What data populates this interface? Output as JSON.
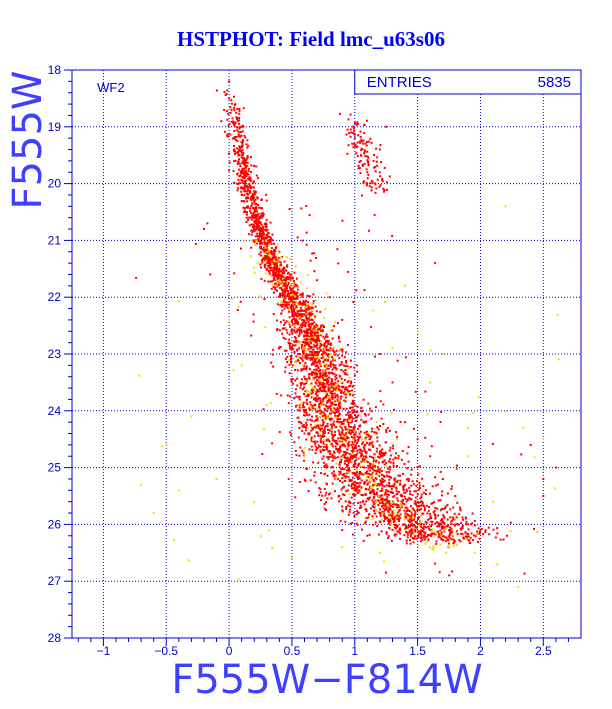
{
  "chart_data": {
    "type": "scatter",
    "title": "HSTPHOT: Field lmc_u63s06",
    "xlabel": "F555W−F814W",
    "ylabel": "F555W",
    "panel_label": "WF2",
    "stats": {
      "label": "ENTRIES",
      "value": "5835"
    },
    "xlim": [
      -1.25,
      2.8
    ],
    "ylim": [
      28,
      18
    ],
    "y_inverted": true,
    "grid": true,
    "grid_style": "dotted",
    "x_ticks": [
      -1,
      -0.5,
      0,
      0.5,
      1,
      1.5,
      2,
      2.5
    ],
    "x_tick_labels": [
      "−1",
      "−0.5",
      "0",
      "0.5",
      "1",
      "1.5",
      "2",
      "2.5"
    ],
    "y_ticks": [
      18,
      19,
      20,
      21,
      22,
      23,
      24,
      25,
      26,
      27,
      28
    ],
    "y_tick_labels": [
      "18",
      "19",
      "20",
      "21",
      "22",
      "23",
      "24",
      "25",
      "26",
      "27",
      "28"
    ],
    "series": [
      {
        "color": "#ff0000",
        "points": [
          [
            0.0,
            18.2
          ],
          [
            0.0,
            18.5
          ],
          [
            0.02,
            18.7
          ],
          [
            0.05,
            18.6
          ],
          [
            0.07,
            18.9
          ],
          [
            0.1,
            19.0
          ],
          [
            0.04,
            19.2
          ],
          [
            0.08,
            19.4
          ],
          [
            0.05,
            19.6
          ],
          [
            0.1,
            19.8
          ],
          [
            0.06,
            20.0
          ],
          [
            0.1,
            20.2
          ],
          [
            0.15,
            20.1
          ],
          [
            0.2,
            20.3
          ],
          [
            0.12,
            20.5
          ],
          [
            0.2,
            20.6
          ],
          [
            0.25,
            20.7
          ],
          [
            0.18,
            20.9
          ],
          [
            0.28,
            21.0
          ],
          [
            0.3,
            21.1
          ],
          [
            0.35,
            21.2
          ],
          [
            0.32,
            21.4
          ],
          [
            0.4,
            21.5
          ],
          [
            0.38,
            21.6
          ],
          [
            0.45,
            21.8
          ],
          [
            0.5,
            21.9
          ],
          [
            0.48,
            22.0
          ],
          [
            0.52,
            22.2
          ],
          [
            0.55,
            22.3
          ],
          [
            0.58,
            22.4
          ],
          [
            0.6,
            22.5
          ],
          [
            0.62,
            22.6
          ],
          [
            0.6,
            22.8
          ],
          [
            0.65,
            22.9
          ],
          [
            0.66,
            23.0
          ],
          [
            0.68,
            23.1
          ],
          [
            0.7,
            23.2
          ],
          [
            0.72,
            23.3
          ],
          [
            0.74,
            23.4
          ],
          [
            0.76,
            23.6
          ],
          [
            0.78,
            23.7
          ],
          [
            0.8,
            23.8
          ],
          [
            0.82,
            24.0
          ],
          [
            0.85,
            24.1
          ],
          [
            0.88,
            24.2
          ],
          [
            0.9,
            24.4
          ],
          [
            0.92,
            24.5
          ],
          [
            0.95,
            24.6
          ],
          [
            0.98,
            24.8
          ],
          [
            1.0,
            24.9
          ],
          [
            1.05,
            25.1
          ],
          [
            1.1,
            25.3
          ],
          [
            1.15,
            25.4
          ],
          [
            1.2,
            25.6
          ],
          [
            1.25,
            25.7
          ],
          [
            1.3,
            25.8
          ],
          [
            1.35,
            25.9
          ],
          [
            1.4,
            26.0
          ],
          [
            1.45,
            26.1
          ],
          [
            1.5,
            26.2
          ],
          [
            1.55,
            26.0
          ],
          [
            1.6,
            26.1
          ],
          [
            1.65,
            26.3
          ],
          [
            1.7,
            26.2
          ],
          [
            1.8,
            26.3
          ],
          [
            1.0,
            19.2
          ],
          [
            1.05,
            19.5
          ],
          [
            1.1,
            19.8
          ],
          [
            0.98,
            19.3
          ],
          [
            1.15,
            19.6
          ],
          [
            1.2,
            19.4
          ],
          [
            1.25,
            19.0
          ],
          [
            0.3,
            20.3
          ],
          [
            0.4,
            21.2
          ],
          [
            0.7,
            21.7
          ],
          [
            0.8,
            22.0
          ],
          [
            0.9,
            22.4
          ],
          [
            1.2,
            23.0
          ],
          [
            1.3,
            23.5
          ],
          [
            1.4,
            24.2
          ],
          [
            1.5,
            24.5
          ],
          [
            1.6,
            24.8
          ],
          [
            1.7,
            25.2
          ],
          [
            1.8,
            25.5
          ],
          [
            -0.2,
            20.8
          ],
          [
            -0.15,
            21.6
          ],
          [
            0.9,
            26.1
          ],
          [
            1.1,
            26.2
          ],
          [
            2.4,
            24.6
          ],
          [
            2.5,
            25.2
          ],
          [
            2.6,
            25.0
          ],
          [
            2.5,
            25.5
          ]
        ]
      },
      {
        "color": "#ffd700",
        "points": [
          [
            -0.6,
            25.8
          ],
          [
            -0.4,
            25.4
          ],
          [
            -0.5,
            24.6
          ],
          [
            -0.1,
            25.2
          ],
          [
            0.2,
            25.6
          ],
          [
            0.3,
            23.9
          ],
          [
            0.1,
            23.2
          ],
          [
            -0.3,
            24.1
          ],
          [
            0.5,
            26.6
          ],
          [
            1.3,
            22.9
          ],
          [
            1.6,
            23.5
          ],
          [
            1.9,
            24.8
          ],
          [
            2.1,
            25.6
          ],
          [
            2.2,
            20.4
          ],
          [
            1.5,
            22.6
          ],
          [
            1.7,
            23.0
          ],
          [
            2.0,
            26.7
          ],
          [
            2.3,
            27.1
          ],
          [
            1.9,
            24.3
          ],
          [
            0.4,
            21.7
          ],
          [
            0.6,
            24.8
          ],
          [
            1.2,
            26.5
          ],
          [
            1.4,
            21.8
          ],
          [
            0.9,
            26.4
          ],
          [
            2.5,
            24.5
          ],
          [
            -0.7,
            25.3
          ],
          [
            0.0,
            22.4
          ],
          [
            1.8,
            25.9
          ]
        ]
      }
    ],
    "dense_band": [
      [
        0.0,
        18.3
      ],
      [
        0.08,
        19.3
      ],
      [
        0.18,
        20.4
      ],
      [
        0.32,
        21.3
      ],
      [
        0.5,
        22.0
      ],
      [
        0.62,
        22.6
      ],
      [
        0.7,
        23.2
      ],
      [
        0.78,
        23.8
      ],
      [
        0.9,
        24.4
      ],
      [
        1.05,
        25.0
      ],
      [
        1.2,
        25.5
      ],
      [
        1.4,
        25.9
      ],
      [
        1.7,
        26.2
      ]
    ],
    "branch": [
      [
        0.98,
        19.0
      ],
      [
        1.05,
        19.4
      ],
      [
        1.12,
        19.8
      ],
      [
        1.2,
        20.2
      ]
    ]
  }
}
